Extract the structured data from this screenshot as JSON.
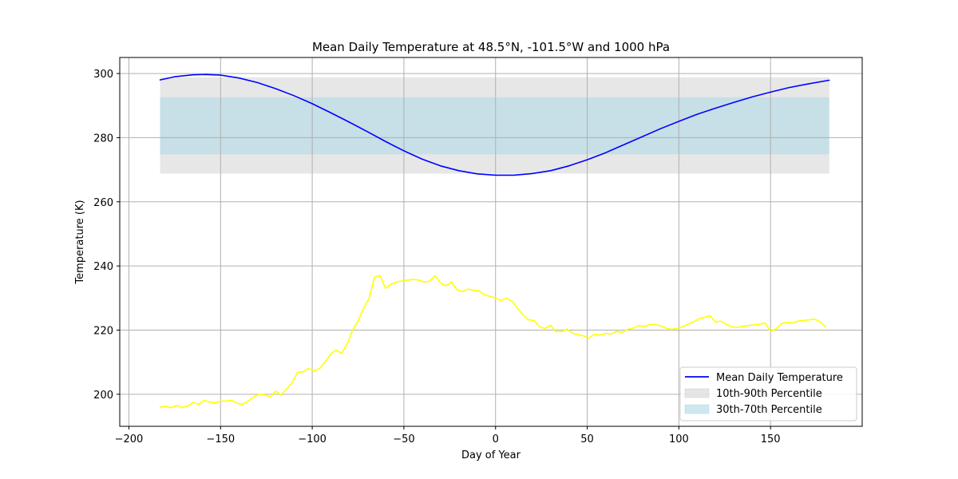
{
  "chart_data": {
    "type": "line",
    "title": "Mean Daily Temperature at 48.5°N, -101.5°W and 1000 hPa",
    "xlabel": "Day of Year",
    "ylabel": "Temperature (K)",
    "xlim": [
      -205,
      200
    ],
    "ylim": [
      190,
      305
    ],
    "xticks": [
      -200,
      -150,
      -100,
      -50,
      0,
      50,
      100,
      150
    ],
    "xtick_labels": [
      "−200",
      "−150",
      "−100",
      "−50",
      "0",
      "50",
      "100",
      "150"
    ],
    "yticks": [
      200,
      220,
      240,
      260,
      280,
      300
    ],
    "ytick_labels": [
      "200",
      "220",
      "240",
      "260",
      "280",
      "300"
    ],
    "grid": true,
    "legend_position": "lower-right",
    "bands": [
      {
        "name": "10th-90th Percentile",
        "x_range": [
          -183,
          182
        ],
        "y_range": [
          268.8,
          298.8
        ],
        "color": "#d3d3d3"
      },
      {
        "name": "30th-70th Percentile",
        "x_range": [
          -183,
          182
        ],
        "y_range": [
          274.8,
          292.6
        ],
        "color": "#add8e6"
      }
    ],
    "series": [
      {
        "name": "Mean Daily Temperature",
        "color": "#0000ff",
        "x": [
          -183,
          -175,
          -165,
          -158,
          -150,
          -140,
          -130,
          -120,
          -110,
          -100,
          -90,
          -80,
          -70,
          -60,
          -50,
          -40,
          -30,
          -20,
          -10,
          0,
          10,
          20,
          30,
          40,
          50,
          60,
          70,
          80,
          90,
          100,
          110,
          120,
          130,
          140,
          150,
          160,
          170,
          182
        ],
        "y": [
          298.0,
          299.0,
          299.6,
          299.7,
          299.5,
          298.6,
          297.2,
          295.3,
          293.1,
          290.6,
          287.8,
          284.9,
          281.9,
          278.8,
          275.9,
          273.3,
          271.2,
          269.7,
          268.7,
          268.3,
          268.3,
          268.8,
          269.7,
          271.2,
          273.1,
          275.3,
          277.8,
          280.3,
          282.8,
          285.1,
          287.3,
          289.2,
          291.0,
          292.7,
          294.2,
          295.6,
          296.7,
          297.9
        ]
      },
      {
        "color": "#ffff00",
        "x": [
          -183,
          -180,
          -177,
          -174,
          -171,
          -168,
          -165,
          -162,
          -159,
          -156,
          -153,
          -150,
          -147,
          -144,
          -141,
          -138,
          -135,
          -132,
          -129,
          -126,
          -123,
          -120,
          -117,
          -114,
          -111,
          -108,
          -105,
          -102,
          -99,
          -96,
          -93,
          -90,
          -87,
          -84,
          -81,
          -78,
          -75,
          -72,
          -69,
          -66,
          -63,
          -60,
          -57,
          -54,
          -51,
          -48,
          -45,
          -42,
          -39,
          -36,
          -33,
          -30,
          -27,
          -24,
          -21,
          -18,
          -15,
          -12,
          -9,
          -6,
          -3,
          0,
          3,
          6,
          9,
          12,
          15,
          18,
          21,
          24,
          27,
          30,
          33,
          36,
          39,
          42,
          45,
          48,
          51,
          54,
          57,
          60,
          63,
          66,
          69,
          72,
          75,
          78,
          81,
          84,
          87,
          90,
          93,
          96,
          99,
          102,
          105,
          108,
          111,
          114,
          117,
          120,
          123,
          126,
          129,
          132,
          135,
          138,
          141,
          144,
          147,
          150,
          153,
          156,
          159,
          162,
          165,
          168,
          171,
          174,
          177,
          180
        ],
        "y": [
          196.0,
          196.2,
          195.8,
          196.5,
          195.9,
          196.3,
          197.5,
          196.8,
          198.1,
          197.6,
          197.3,
          197.8,
          197.9,
          198.1,
          197.2,
          196.8,
          197.9,
          199.1,
          200.0,
          199.8,
          199.2,
          201.0,
          199.8,
          201.6,
          203.6,
          206.8,
          207.0,
          208.0,
          207.3,
          208.0,
          210.0,
          212.5,
          213.8,
          212.8,
          215.6,
          220.0,
          222.8,
          226.8,
          229.8,
          236.5,
          237.0,
          233.0,
          234.3,
          235.0,
          235.3,
          235.6,
          235.8,
          235.6,
          235.0,
          235.2,
          237.0,
          234.6,
          233.8,
          235.0,
          232.6,
          232.0,
          232.8,
          232.4,
          232.2,
          231.0,
          230.5,
          230.0,
          229.2,
          230.0,
          229.0,
          226.8,
          224.8,
          223.2,
          223.0,
          221.0,
          220.5,
          221.5,
          219.5,
          219.5,
          220.3,
          219.0,
          218.6,
          218.2,
          217.5,
          218.7,
          218.4,
          219.0,
          218.8,
          219.6,
          219.3,
          220.2,
          220.6,
          221.4,
          221.1,
          221.7,
          221.8,
          221.3,
          220.6,
          220.2,
          220.5,
          221.0,
          221.8,
          222.6,
          223.5,
          224.0,
          224.5,
          222.5,
          222.8,
          221.8,
          221.0,
          220.8,
          221.2,
          221.4,
          221.6,
          221.8,
          222.2,
          219.6,
          220.4,
          222.0,
          222.4,
          222.2,
          222.8,
          223.0,
          223.2,
          223.4,
          222.6,
          221.0
        ]
      }
    ]
  }
}
